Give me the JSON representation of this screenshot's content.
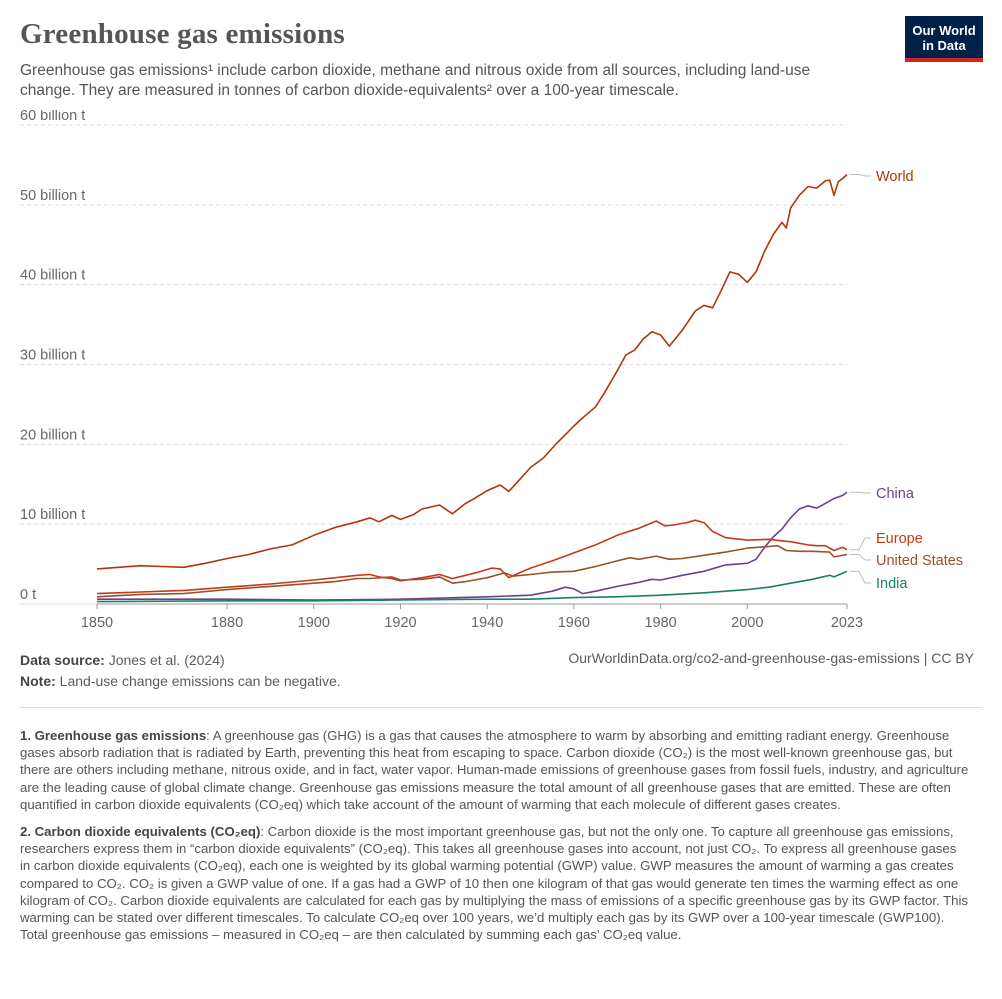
{
  "header": {
    "title": "Greenhouse gas emissions",
    "subtitle": "Greenhouse gas emissions¹ include carbon dioxide, methane and nitrous oxide from all sources, including land-use change. They are measured in tonnes of carbon dioxide-equivalents² over a 100-year timescale.",
    "logo_line1": "Our World",
    "logo_line2": "in Data"
  },
  "footer": {
    "source_label": "Data source:",
    "source_text": " Jones et al. (2024)",
    "note_label": "Note:",
    "note_text": " Land-use change emissions can be negative.",
    "url": "OurWorldinData.org/co2-and-greenhouse-gas-emissions | CC BY"
  },
  "notes": [
    {
      "head": "1. Greenhouse gas emissions",
      "text": ": A greenhouse gas (GHG) is a gas that causes the atmosphere to warm by absorbing and emitting radiant energy. Greenhouse gases absorb radiation that is radiated by Earth, preventing this heat from escaping to space. Carbon dioxide (CO₂) is the most well-known greenhouse gas, but there are others including methane, nitrous oxide, and in fact, water vapor. Human-made emissions of greenhouse gases from fossil fuels, industry, and agriculture are the leading cause of global climate change. Greenhouse gas emissions measure the total amount of all greenhouse gases that are emitted. These are often quantified in carbon dioxide equivalents (CO₂eq) which take account of the amount of warming that each molecule of different gases creates."
    },
    {
      "head": "2. Carbon dioxide equivalents (CO₂eq)",
      "text": ": Carbon dioxide is the most important greenhouse gas, but not the only one. To capture all greenhouse gas emissions, researchers express them in “carbon dioxide equivalents” (CO₂eq). This takes all greenhouse gases into account, not just CO₂. To express all greenhouse gases in carbon dioxide equivalents (CO₂eq), each one is weighted by its global warming potential (GWP) value. GWP measures the amount of warming a gas creates compared to CO₂. CO₂ is given a GWP value of one. If a gas had a GWP of 10 then one kilogram of that gas would generate ten times the warming effect as one kilogram of CO₂. Carbon dioxide equivalents are calculated for each gas by multiplying the mass of emissions of a specific greenhouse gas by its GWP factor. This warming can be stated over different timescales. To calculate CO₂eq over 100 years, we’d multiply each gas by its GWP over a 100-year timescale (GWP100). Total greenhouse gas emissions – measured in CO₂eq – are then calculated by summing each gas’ CO₂eq value."
    }
  ],
  "chart_data": {
    "type": "line",
    "xlim": [
      1850,
      2023
    ],
    "ylim": [
      0,
      60
    ],
    "x_ticks": [
      1850,
      1880,
      1900,
      1920,
      1940,
      1960,
      1980,
      2000,
      2023
    ],
    "x_tick_labels": [
      "1850",
      "1880",
      "1900",
      "1920",
      "1940",
      "1960",
      "1980",
      "2000",
      "2023"
    ],
    "y_ticks": [
      0,
      10,
      20,
      30,
      40,
      50,
      60
    ],
    "y_tick_labels": [
      "0 t",
      "10 billion t",
      "20 billion t",
      "30 billion t",
      "40 billion t",
      "50 billion t",
      "60 billion t"
    ],
    "grid": "horizontal dashed",
    "legend": "line-end labels on the right",
    "series": [
      {
        "name": "World",
        "color": "#b13507",
        "points": [
          [
            1850,
            4.4
          ],
          [
            1855,
            4.6
          ],
          [
            1860,
            4.8
          ],
          [
            1865,
            4.7
          ],
          [
            1870,
            4.6
          ],
          [
            1875,
            5.1
          ],
          [
            1880,
            5.7
          ],
          [
            1885,
            6.2
          ],
          [
            1890,
            6.9
          ],
          [
            1895,
            7.4
          ],
          [
            1900,
            8.6
          ],
          [
            1905,
            9.6
          ],
          [
            1910,
            10.3
          ],
          [
            1913,
            10.8
          ],
          [
            1915,
            10.3
          ],
          [
            1918,
            11.1
          ],
          [
            1920,
            10.6
          ],
          [
            1923,
            11.2
          ],
          [
            1925,
            11.9
          ],
          [
            1929,
            12.4
          ],
          [
            1932,
            11.3
          ],
          [
            1935,
            12.6
          ],
          [
            1937,
            13.2
          ],
          [
            1940,
            14.2
          ],
          [
            1943,
            14.9
          ],
          [
            1945,
            14.1
          ],
          [
            1947,
            15.3
          ],
          [
            1950,
            17.1
          ],
          [
            1953,
            18.3
          ],
          [
            1956,
            20.1
          ],
          [
            1958,
            21.2
          ],
          [
            1960,
            22.3
          ],
          [
            1962,
            23.3
          ],
          [
            1965,
            24.7
          ],
          [
            1967,
            26.4
          ],
          [
            1970,
            29.2
          ],
          [
            1972,
            31.2
          ],
          [
            1974,
            31.8
          ],
          [
            1976,
            33.2
          ],
          [
            1978,
            34.1
          ],
          [
            1980,
            33.7
          ],
          [
            1982,
            32.3
          ],
          [
            1985,
            34.3
          ],
          [
            1988,
            36.7
          ],
          [
            1990,
            37.4
          ],
          [
            1992,
            37.1
          ],
          [
            1994,
            39.3
          ],
          [
            1996,
            41.6
          ],
          [
            1998,
            41.3
          ],
          [
            2000,
            40.3
          ],
          [
            2002,
            41.6
          ],
          [
            2004,
            44.2
          ],
          [
            2006,
            46.3
          ],
          [
            2008,
            47.8
          ],
          [
            2009,
            47.1
          ],
          [
            2010,
            49.6
          ],
          [
            2012,
            51.2
          ],
          [
            2014,
            52.3
          ],
          [
            2016,
            52.1
          ],
          [
            2018,
            53.0
          ],
          [
            2019,
            53.1
          ],
          [
            2020,
            51.2
          ],
          [
            2021,
            52.9
          ],
          [
            2022,
            53.3
          ],
          [
            2023,
            53.8
          ]
        ]
      },
      {
        "name": "China",
        "color": "#6d3e91",
        "points": [
          [
            1850,
            0.6
          ],
          [
            1880,
            0.6
          ],
          [
            1900,
            0.5
          ],
          [
            1920,
            0.6
          ],
          [
            1940,
            0.9
          ],
          [
            1950,
            1.1
          ],
          [
            1955,
            1.6
          ],
          [
            1958,
            2.1
          ],
          [
            1960,
            1.9
          ],
          [
            1962,
            1.3
          ],
          [
            1965,
            1.6
          ],
          [
            1970,
            2.2
          ],
          [
            1975,
            2.7
          ],
          [
            1978,
            3.1
          ],
          [
            1980,
            3.0
          ],
          [
            1985,
            3.6
          ],
          [
            1990,
            4.1
          ],
          [
            1995,
            4.9
          ],
          [
            2000,
            5.1
          ],
          [
            2002,
            5.6
          ],
          [
            2004,
            7.1
          ],
          [
            2006,
            8.4
          ],
          [
            2008,
            9.4
          ],
          [
            2010,
            10.8
          ],
          [
            2012,
            11.9
          ],
          [
            2014,
            12.3
          ],
          [
            2016,
            12.0
          ],
          [
            2018,
            12.6
          ],
          [
            2020,
            13.2
          ],
          [
            2022,
            13.6
          ],
          [
            2023,
            14.0
          ]
        ]
      },
      {
        "name": "Europe",
        "color": "#c63916",
        "points": [
          [
            1850,
            1.3
          ],
          [
            1860,
            1.5
          ],
          [
            1870,
            1.7
          ],
          [
            1880,
            2.1
          ],
          [
            1890,
            2.5
          ],
          [
            1900,
            3.0
          ],
          [
            1905,
            3.3
          ],
          [
            1910,
            3.6
          ],
          [
            1913,
            3.7
          ],
          [
            1915,
            3.4
          ],
          [
            1918,
            3.2
          ],
          [
            1920,
            2.9
          ],
          [
            1925,
            3.3
          ],
          [
            1929,
            3.7
          ],
          [
            1932,
            3.2
          ],
          [
            1935,
            3.6
          ],
          [
            1938,
            4.0
          ],
          [
            1941,
            4.5
          ],
          [
            1943,
            4.4
          ],
          [
            1945,
            3.3
          ],
          [
            1947,
            3.8
          ],
          [
            1950,
            4.5
          ],
          [
            1955,
            5.4
          ],
          [
            1960,
            6.4
          ],
          [
            1965,
            7.4
          ],
          [
            1970,
            8.6
          ],
          [
            1975,
            9.5
          ],
          [
            1979,
            10.4
          ],
          [
            1981,
            9.8
          ],
          [
            1983,
            9.9
          ],
          [
            1986,
            10.2
          ],
          [
            1988,
            10.5
          ],
          [
            1990,
            10.2
          ],
          [
            1992,
            9.1
          ],
          [
            1995,
            8.3
          ],
          [
            2000,
            8.0
          ],
          [
            2005,
            8.1
          ],
          [
            2008,
            7.9
          ],
          [
            2010,
            7.8
          ],
          [
            2014,
            7.4
          ],
          [
            2016,
            7.3
          ],
          [
            2018,
            7.3
          ],
          [
            2020,
            6.7
          ],
          [
            2022,
            7.1
          ],
          [
            2023,
            6.8
          ]
        ]
      },
      {
        "name": "United States",
        "color": "#9a5129",
        "points": [
          [
            1850,
            0.9
          ],
          [
            1860,
            1.2
          ],
          [
            1870,
            1.3
          ],
          [
            1880,
            1.8
          ],
          [
            1890,
            2.2
          ],
          [
            1900,
            2.6
          ],
          [
            1905,
            2.8
          ],
          [
            1910,
            3.2
          ],
          [
            1913,
            3.2
          ],
          [
            1918,
            3.4
          ],
          [
            1920,
            3.0
          ],
          [
            1925,
            3.1
          ],
          [
            1929,
            3.4
          ],
          [
            1932,
            2.6
          ],
          [
            1935,
            2.8
          ],
          [
            1940,
            3.3
          ],
          [
            1944,
            3.9
          ],
          [
            1946,
            3.5
          ],
          [
            1950,
            3.7
          ],
          [
            1955,
            4.0
          ],
          [
            1960,
            4.1
          ],
          [
            1965,
            4.7
          ],
          [
            1970,
            5.4
          ],
          [
            1973,
            5.8
          ],
          [
            1975,
            5.6
          ],
          [
            1979,
            6.0
          ],
          [
            1982,
            5.6
          ],
          [
            1985,
            5.7
          ],
          [
            1990,
            6.1
          ],
          [
            1995,
            6.5
          ],
          [
            2000,
            7.0
          ],
          [
            2005,
            7.2
          ],
          [
            2007,
            7.3
          ],
          [
            2009,
            6.7
          ],
          [
            2012,
            6.6
          ],
          [
            2015,
            6.6
          ],
          [
            2019,
            6.5
          ],
          [
            2020,
            5.9
          ],
          [
            2023,
            6.2
          ]
        ]
      },
      {
        "name": "India",
        "color": "#18806a",
        "points": [
          [
            1850,
            0.3
          ],
          [
            1880,
            0.4
          ],
          [
            1900,
            0.4
          ],
          [
            1920,
            0.5
          ],
          [
            1940,
            0.6
          ],
          [
            1950,
            0.6
          ],
          [
            1960,
            0.8
          ],
          [
            1970,
            0.9
          ],
          [
            1980,
            1.1
          ],
          [
            1990,
            1.4
          ],
          [
            2000,
            1.8
          ],
          [
            2005,
            2.1
          ],
          [
            2010,
            2.6
          ],
          [
            2015,
            3.1
          ],
          [
            2019,
            3.6
          ],
          [
            2020,
            3.4
          ],
          [
            2023,
            4.1
          ]
        ]
      }
    ]
  }
}
